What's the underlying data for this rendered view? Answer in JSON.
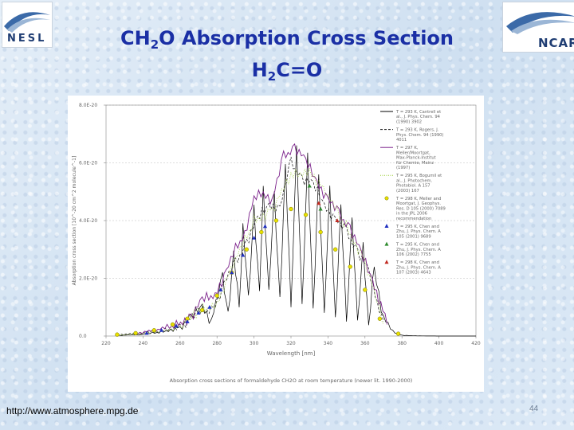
{
  "logos": {
    "left": {
      "text": "NESL",
      "icon": "nesl-swoosh-logo"
    },
    "right": {
      "text": "NCAR",
      "icon": "ncar-swoosh-logo"
    }
  },
  "title": {
    "line1": {
      "a": "CH",
      "sub1": "2",
      "b": "O Absorption Cross Section"
    },
    "line2": {
      "a": "H",
      "sub1": "2",
      "b": "C=O"
    }
  },
  "footer": {
    "url": "http://www.atmosphere.mpg.de",
    "page_number": "44"
  },
  "colors": {
    "title": "#1a2fa5",
    "chart_axis": "#888888",
    "series": [
      "#000000",
      "#111111",
      "#7a1f8a",
      "#9acd32",
      "#e8e000",
      "#1f2fbf",
      "#2e8b2e",
      "#c0281f"
    ]
  },
  "chart_data": {
    "type": "line",
    "title": "",
    "caption": "Absorption cross sections of formaldehyde CH2O at room temperature (newer lit. 1990-2000)",
    "xlabel": "Wavelength [nm]",
    "ylabel": "Absorption cross section [10^-20 cm^2 molecule^-1]",
    "xlim": [
      220,
      420
    ],
    "ylim": [
      0,
      80
    ],
    "xticks": [
      "220",
      "240",
      "260",
      "280",
      "300",
      "320",
      "340",
      "360",
      "380",
      "400",
      "420"
    ],
    "yticks": [
      "0.0",
      "2.0E-20",
      "4.0E-20",
      "6.0E-20",
      "8.0E-20"
    ],
    "series": [
      {
        "name": "T = 293 K, Cantrell et al., J. Phys. Chem. 94 (1990) 3902",
        "style": "solid-black",
        "x": [
          225,
          240,
          250,
          260,
          266,
          272,
          277,
          283,
          286,
          289,
          292,
          294,
          297,
          300,
          303,
          305,
          308,
          311,
          314,
          317,
          320,
          323,
          326,
          329,
          332,
          335,
          338,
          341,
          344,
          347,
          350,
          353,
          356,
          359,
          362,
          365,
          370,
          375,
          380,
          385,
          400,
          420
        ],
        "values": [
          0.2,
          0.5,
          1.5,
          3,
          6,
          11,
          5,
          20,
          8,
          28,
          10,
          38,
          12,
          45,
          14,
          52,
          15,
          48,
          13,
          58,
          10,
          65,
          9,
          63,
          8,
          56,
          7,
          50,
          6,
          44,
          5,
          40,
          4,
          32,
          3,
          24,
          6,
          1.5,
          0.3,
          0.1,
          0,
          0
        ]
      },
      {
        "name": "T = 293 K, Rogers, J. Phys. Chem. 94 (1990) 4011",
        "style": "dashed-black",
        "x": [
          226,
          240,
          252,
          262,
          270,
          278,
          284,
          290,
          296,
          302,
          308,
          314,
          320,
          326,
          332,
          338,
          344,
          350,
          356,
          362,
          370
        ],
        "values": [
          0.5,
          1,
          2,
          4,
          8,
          10,
          18,
          25,
          33,
          40,
          46,
          44,
          60,
          55,
          52,
          46,
          40,
          36,
          30,
          22,
          5
        ]
      },
      {
        "name": "T = 297 K, Meller/Moortgat, Max-Planck-Institut für Chemie, Mainz (1997)",
        "style": "solid-purple",
        "x": [
          236,
          248,
          258,
          266,
          272,
          279,
          285,
          290,
          295,
          300,
          305,
          310,
          316,
          322,
          328,
          334,
          340,
          346,
          352,
          358,
          364,
          372
        ],
        "values": [
          1,
          2,
          4,
          7,
          12,
          15,
          22,
          30,
          36,
          47,
          50,
          47,
          62,
          66,
          60,
          54,
          47,
          42,
          38,
          28,
          20,
          4
        ]
      },
      {
        "name": "T = 295 K, Bogumil et al., J. Photochem. Photobiol. A 157 (2003) 167",
        "style": "dotted-green",
        "x": [
          226,
          240,
          250,
          260,
          270,
          280,
          290,
          300,
          310,
          320,
          330,
          340,
          350,
          360,
          370
        ],
        "values": [
          0.3,
          0.8,
          1.8,
          3.5,
          8,
          12,
          26,
          40,
          44,
          55,
          58,
          48,
          38,
          26,
          4
        ]
      },
      {
        "name": "T = 298 K, Meller and Moortgat, J. Geophys. Res. D 105 (2000) 7089 in the JPL 2006 recommendation",
        "style": "yellow-circles",
        "x": [
          226,
          236,
          246,
          256,
          264,
          272,
          280,
          288,
          296,
          304,
          312,
          320,
          328,
          336,
          344,
          352,
          360,
          368,
          378
        ],
        "values": [
          0.5,
          1,
          2,
          4,
          6,
          9,
          14,
          22,
          30,
          36,
          40,
          44,
          42,
          36,
          30,
          24,
          16,
          6,
          0.8
        ]
      },
      {
        "name": "T = 295 K, Chen and Zhu, J. Phys. Chem. A 105 (2001) 9689",
        "style": "blue-triangles",
        "x": [
          242,
          250,
          258,
          264,
          270,
          276,
          282,
          288,
          294,
          300,
          306
        ],
        "values": [
          1,
          2,
          3.5,
          5,
          8,
          10,
          16,
          22,
          28,
          34,
          38
        ]
      },
      {
        "name": "T = 295 K, Chen and Zhu, J. Phys. Chem. A 106 (2002) 7755",
        "style": "green-triangles",
        "x": [
          330,
          336
        ],
        "values": [
          52,
          44
        ]
      },
      {
        "name": "T = 298 K, Chen and Zhu, J. Phys. Chem. A 107 (2003) 4643",
        "style": "red-triangles",
        "x": [
          335,
          345
        ],
        "values": [
          46,
          40
        ]
      }
    ]
  }
}
